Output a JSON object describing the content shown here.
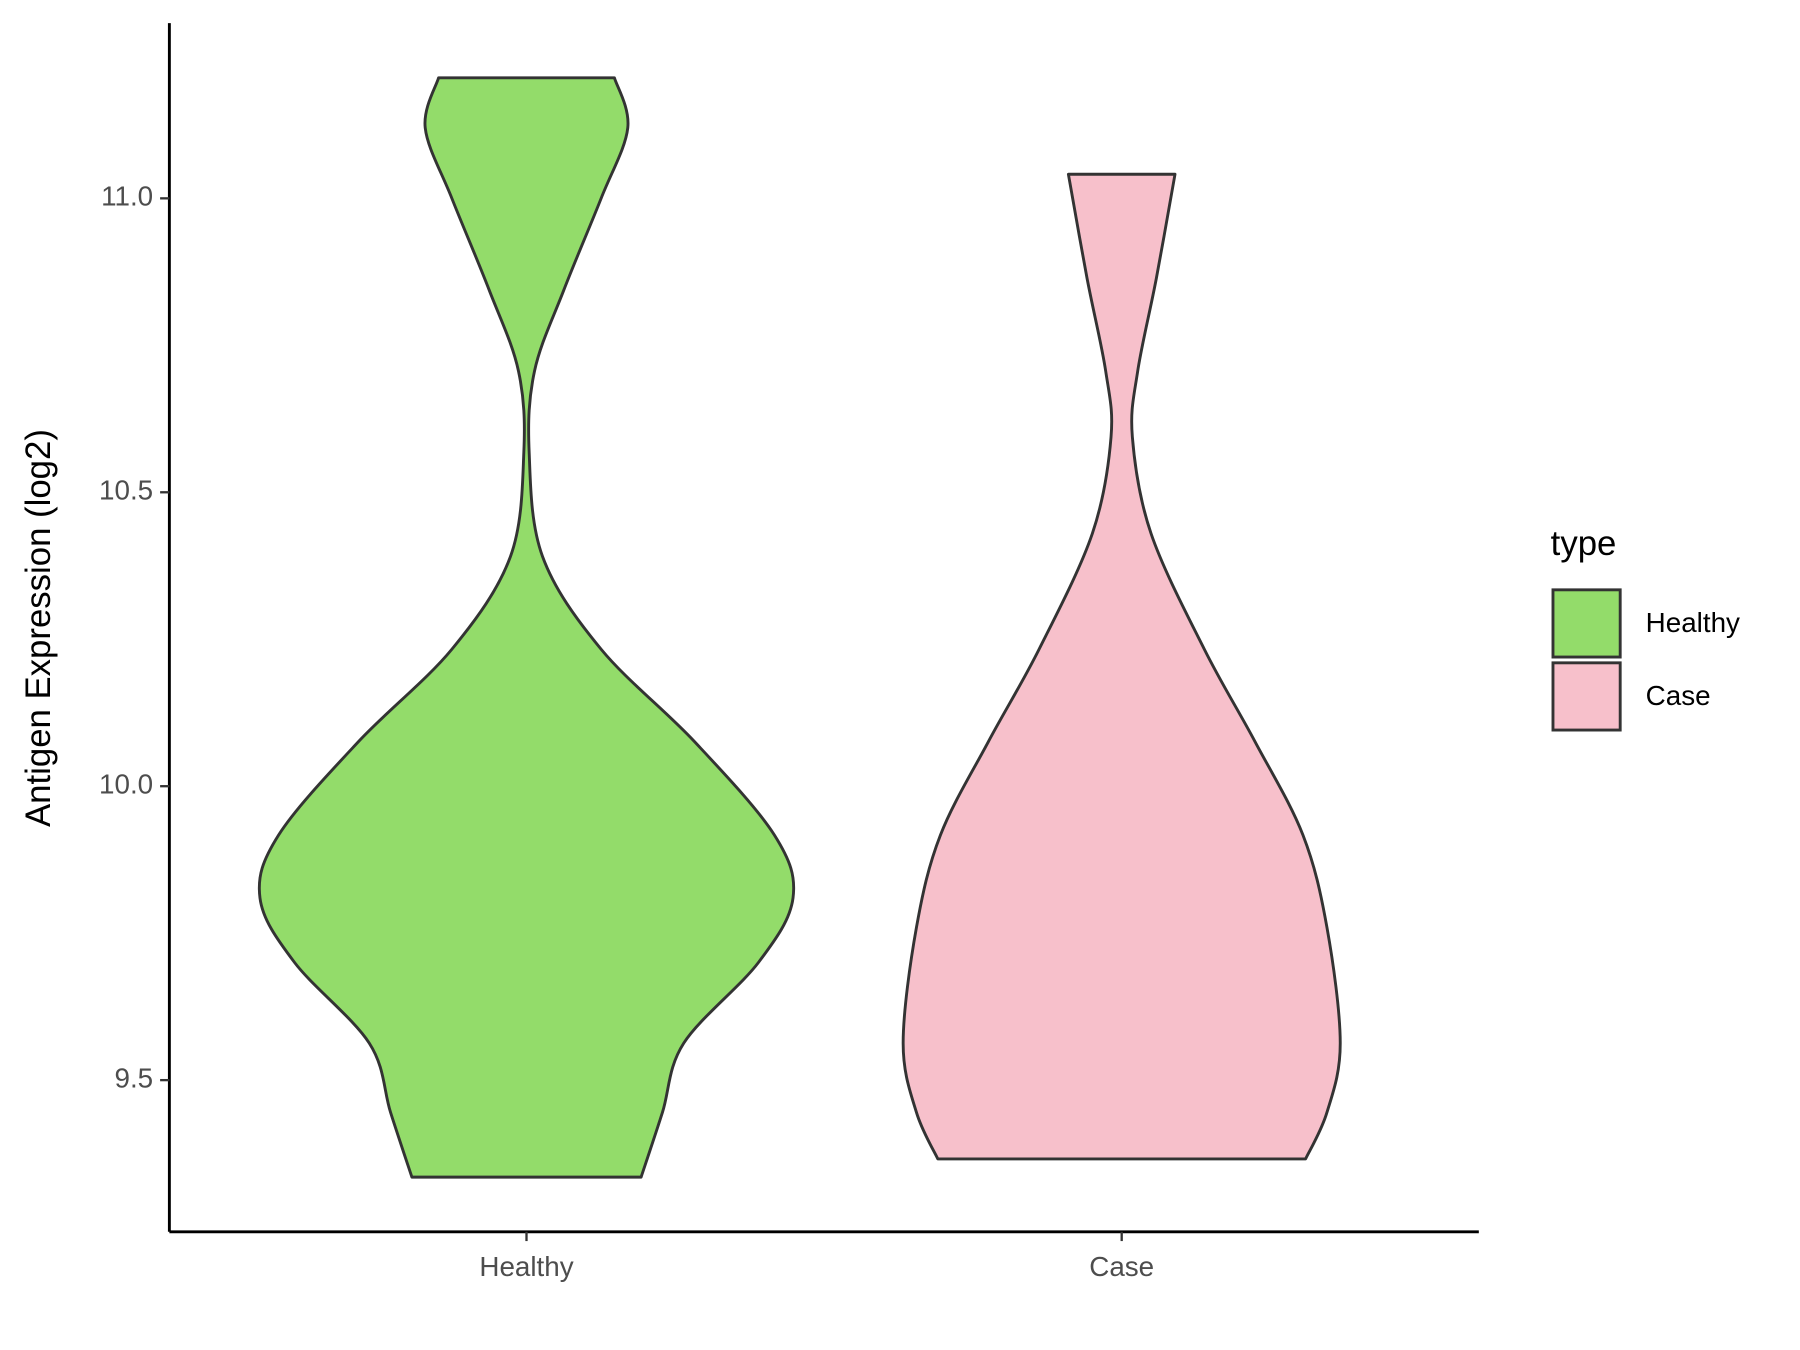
{
  "chart_data": {
    "type": "violin",
    "y_label": "Antigen Expression (log2)",
    "categories": [
      "Healthy",
      "Case"
    ],
    "legend_title": "type",
    "series": [
      {
        "name": "Healthy",
        "color": "#93dc6a",
        "y": [
          11.205,
          11.12,
          11.0,
          10.844,
          10.706,
          10.568,
          10.391,
          10.233,
          10.076,
          9.917,
          9.81,
          9.7,
          9.563,
          9.445,
          9.335
        ],
        "density": [
          0.33,
          0.38,
          0.28,
          0.14,
          0.03,
          0.01,
          0.06,
          0.28,
          0.63,
          0.93,
          1.0,
          0.87,
          0.59,
          0.51,
          0.43
        ]
      },
      {
        "name": "Case",
        "color": "#f7c0cb",
        "y": [
          11.041,
          10.864,
          10.706,
          10.594,
          10.43,
          10.233,
          10.076,
          9.917,
          9.76,
          9.563,
          9.445,
          9.366
        ],
        "density": [
          0.2,
          0.13,
          0.06,
          0.04,
          0.11,
          0.31,
          0.5,
          0.68,
          0.77,
          0.82,
          0.77,
          0.69
        ]
      }
    ],
    "ylim": [
      9.242,
      11.298
    ],
    "yticks": [
      9.5,
      {
        "value": 10,
        "label": "10.0"
      },
      10.5,
      {
        "value": 11,
        "label": "11.0"
      }
    ]
  }
}
